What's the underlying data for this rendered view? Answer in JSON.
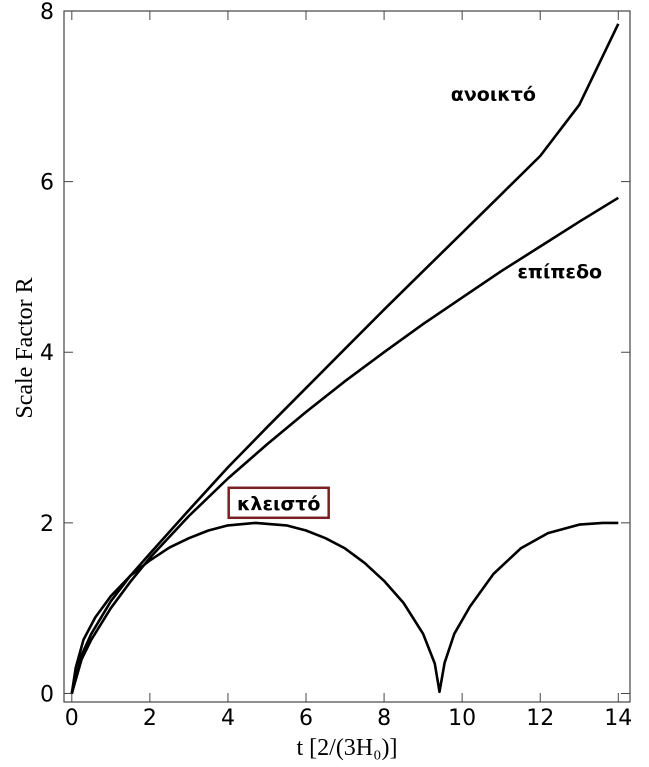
{
  "chart_data": {
    "type": "line",
    "xlabel": "t [2/(3H₀)]",
    "ylabel": "Scale Factor R",
    "xlim": [
      -0.2,
      14.3
    ],
    "ylim": [
      -0.1,
      8.0
    ],
    "x_ticks": [
      "0",
      "2",
      "4",
      "6",
      "8",
      "10",
      "12",
      "14"
    ],
    "y_ticks": [
      "0",
      "2",
      "4",
      "6",
      "8"
    ],
    "frame": true,
    "grid": false,
    "series": [
      {
        "name": "ανοικτό",
        "x": [
          0,
          0.25,
          0.5,
          1,
          1.5,
          2,
          3,
          4,
          5,
          6,
          7,
          8,
          9,
          10,
          11,
          12,
          13,
          14
        ],
        "y": [
          0,
          0.45,
          0.7,
          1.08,
          1.38,
          1.64,
          2.15,
          2.65,
          3.12,
          3.58,
          4.04,
          4.5,
          4.95,
          5.4,
          5.85,
          6.3,
          6.9,
          7.85
        ]
      },
      {
        "name": "επίπεδο",
        "x": [
          0,
          0.25,
          0.5,
          1,
          1.5,
          2,
          3,
          4,
          5,
          6,
          7,
          8,
          9,
          10,
          11,
          12,
          13,
          14
        ],
        "y": [
          0,
          0.4,
          0.63,
          1.0,
          1.31,
          1.59,
          2.08,
          2.52,
          2.92,
          3.3,
          3.66,
          4.0,
          4.33,
          4.64,
          4.95,
          5.24,
          5.53,
          5.81
        ]
      },
      {
        "name": "κλειστό",
        "x": [
          0,
          0.1,
          0.3,
          0.6,
          1,
          1.5,
          2,
          2.5,
          3,
          3.5,
          4,
          4.71,
          5.5,
          6,
          6.5,
          7,
          7.5,
          8,
          8.5,
          9,
          9.3,
          9.42,
          9.55,
          9.8,
          10.2,
          10.8,
          11.5,
          12.2,
          13,
          13.6,
          14.0
        ],
        "y": [
          0,
          0.3,
          0.63,
          0.89,
          1.14,
          1.38,
          1.56,
          1.71,
          1.82,
          1.91,
          1.97,
          2.0,
          1.97,
          1.91,
          1.82,
          1.7,
          1.53,
          1.32,
          1.06,
          0.7,
          0.35,
          0.02,
          0.36,
          0.7,
          1.02,
          1.4,
          1.7,
          1.88,
          1.98,
          2.0,
          2.0
        ]
      }
    ],
    "annotations": [
      {
        "text": "ανοικτό",
        "x": 10.8,
        "y": 7.0
      },
      {
        "text": "επίπεδο",
        "x": 12.5,
        "y": 4.92
      },
      {
        "text": "κλειστό",
        "x": 5.3,
        "y": 2.2,
        "boxed": true,
        "box_color": "#7a1f24"
      }
    ]
  }
}
